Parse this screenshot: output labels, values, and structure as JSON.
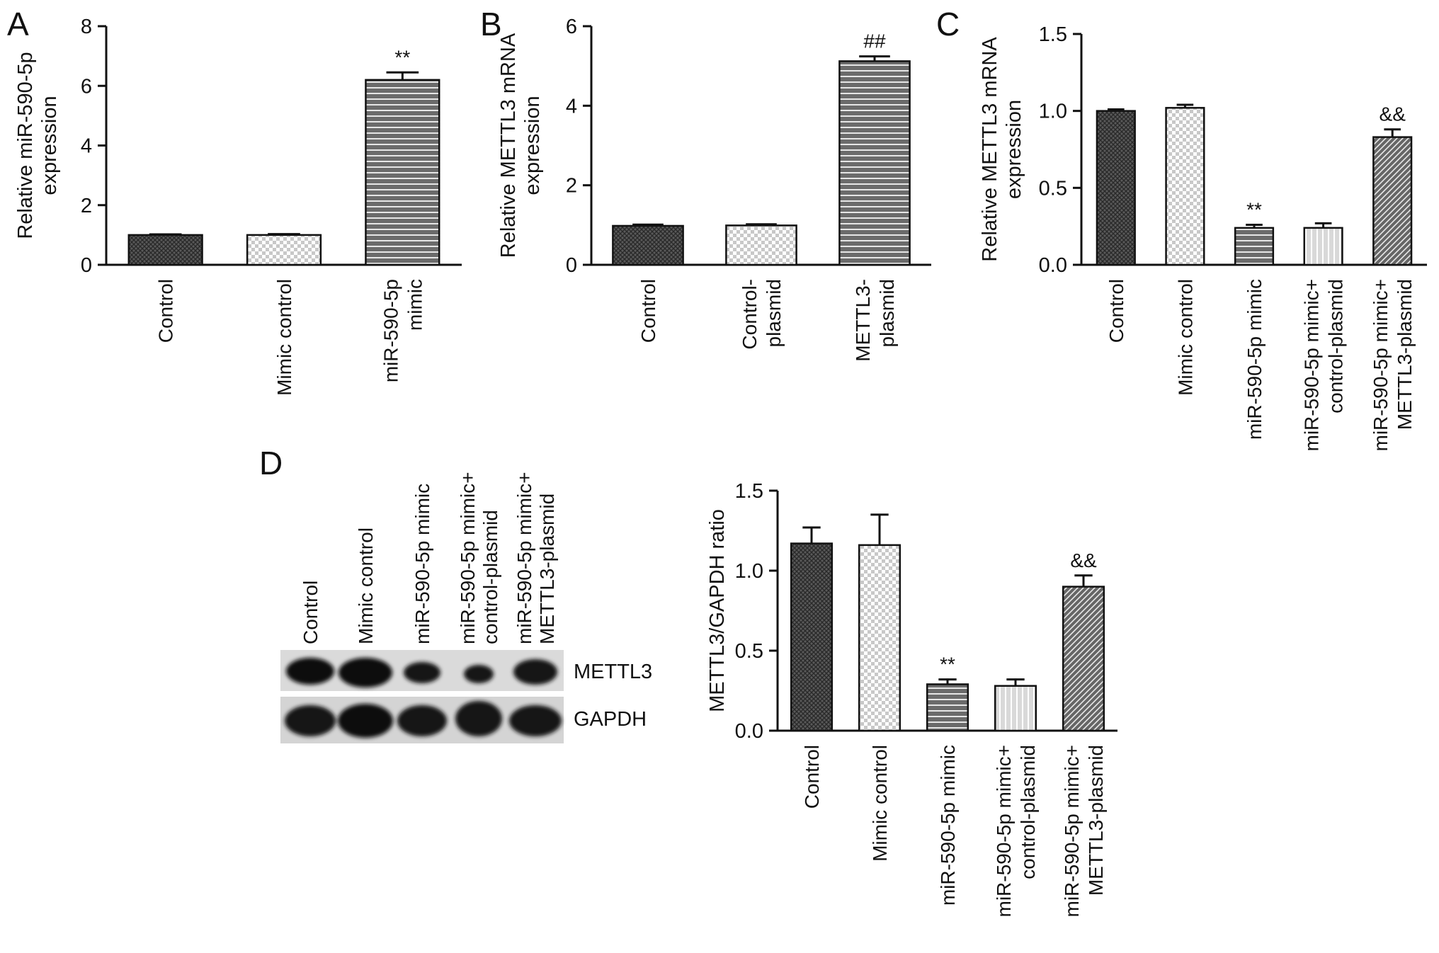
{
  "panels": {
    "A": "A",
    "B": "B",
    "C": "C",
    "D": "D"
  },
  "blot": {
    "lanes": [
      [
        "Control"
      ],
      [
        "Mimic control"
      ],
      [
        "miR-590-5p mimic"
      ],
      [
        "miR-590-5p mimic+",
        "control-plasmid"
      ],
      [
        "miR-590-5p mimic+",
        "METTL3-plasmid"
      ]
    ],
    "rows": [
      "METTL3",
      "GAPDH"
    ]
  },
  "chart_data": [
    {
      "panel": "A",
      "type": "bar",
      "ylabel": [
        "Relative miR-590-5p",
        "expression"
      ],
      "ylim": [
        0,
        8
      ],
      "yticks": [
        "0",
        "2",
        "4",
        "6",
        "8"
      ],
      "categories": [
        [
          "Control"
        ],
        [
          "Mimic control"
        ],
        [
          "miR-590-5p",
          "mimic"
        ]
      ],
      "values": [
        1.0,
        1.0,
        6.2
      ],
      "errors": [
        0.02,
        0.03,
        0.25
      ],
      "significance": [
        "",
        "",
        "**"
      ],
      "patterns": [
        "crosshatch",
        "check-light",
        "hlines"
      ]
    },
    {
      "panel": "B",
      "type": "bar",
      "ylabel": [
        "Relative METTL3 mRNA",
        "expression"
      ],
      "ylim": [
        0,
        6
      ],
      "yticks": [
        "0",
        "2",
        "4",
        "6"
      ],
      "categories": [
        [
          "Control"
        ],
        [
          "Control-",
          "plasmid"
        ],
        [
          "METTL3-",
          "plasmid"
        ]
      ],
      "values": [
        0.98,
        0.99,
        5.12
      ],
      "errors": [
        0.03,
        0.03,
        0.12
      ],
      "significance": [
        "",
        "",
        "##"
      ],
      "patterns": [
        "crosshatch",
        "check-light",
        "hlines"
      ]
    },
    {
      "panel": "C",
      "type": "bar",
      "ylabel": [
        "Relative METTL3 mRNA",
        "expression"
      ],
      "ylim": [
        0,
        1.5
      ],
      "yticks": [
        "0.0",
        "0.5",
        "1.0",
        "1.5"
      ],
      "categories": [
        [
          "Control"
        ],
        [
          "Mimic control"
        ],
        [
          "miR-590-5p mimic"
        ],
        [
          "miR-590-5p mimic+",
          "control-plasmid"
        ],
        [
          "miR-590-5p mimic+",
          "METTL3-plasmid"
        ]
      ],
      "values": [
        1.0,
        1.02,
        0.24,
        0.24,
        0.83
      ],
      "errors": [
        0.01,
        0.02,
        0.02,
        0.03,
        0.05
      ],
      "significance": [
        "",
        "",
        "**",
        "",
        "&&"
      ],
      "patterns": [
        "crosshatch",
        "check-light",
        "hlines",
        "vlines-light",
        "diag"
      ]
    },
    {
      "panel": "D",
      "type": "bar",
      "ylabel": [
        "METTL3/GAPDH ratio"
      ],
      "ylim": [
        0,
        1.5
      ],
      "yticks": [
        "0.0",
        "0.5",
        "1.0",
        "1.5"
      ],
      "categories": [
        [
          "Control"
        ],
        [
          "Mimic control"
        ],
        [
          "miR-590-5p mimic"
        ],
        [
          "miR-590-5p mimic+",
          "control-plasmid"
        ],
        [
          "miR-590-5p mimic+",
          "METTL3-plasmid"
        ]
      ],
      "values": [
        1.17,
        1.16,
        0.29,
        0.28,
        0.9
      ],
      "errors": [
        0.1,
        0.19,
        0.03,
        0.04,
        0.07
      ],
      "significance": [
        "",
        "",
        "**",
        "",
        "&&"
      ],
      "patterns": [
        "crosshatch",
        "check-light",
        "hlines",
        "vlines-light",
        "diag"
      ]
    }
  ]
}
